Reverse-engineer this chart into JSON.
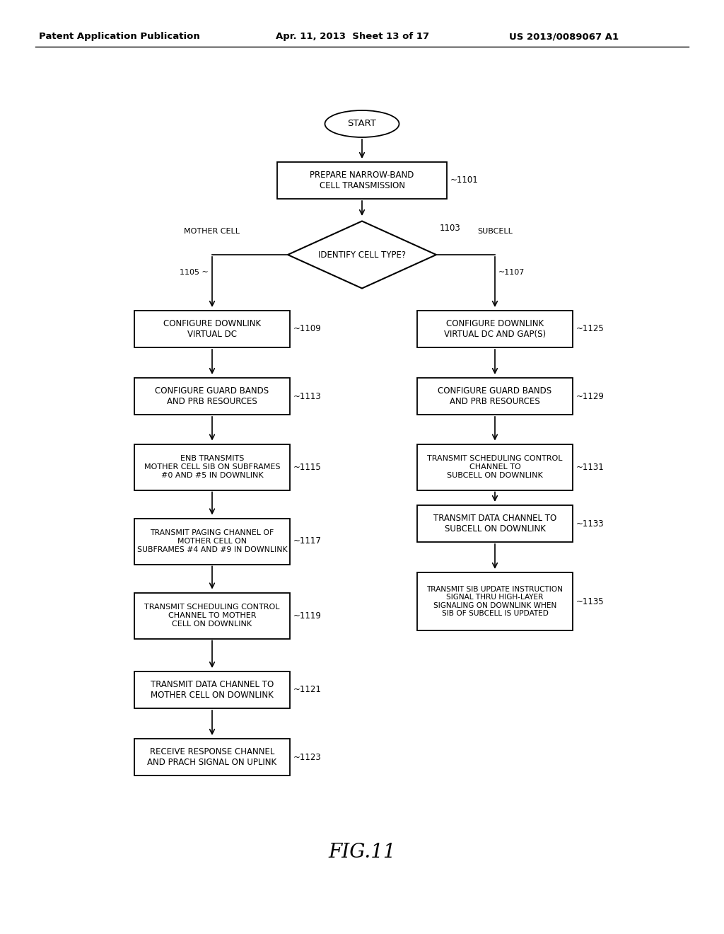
{
  "title": "FIG.11",
  "header_left": "Patent Application Publication",
  "header_center": "Apr. 11, 2013  Sheet 13 of 17",
  "header_right": "US 2013/0089067 A1",
  "bg_color": "#ffffff",
  "text_color": "#000000"
}
